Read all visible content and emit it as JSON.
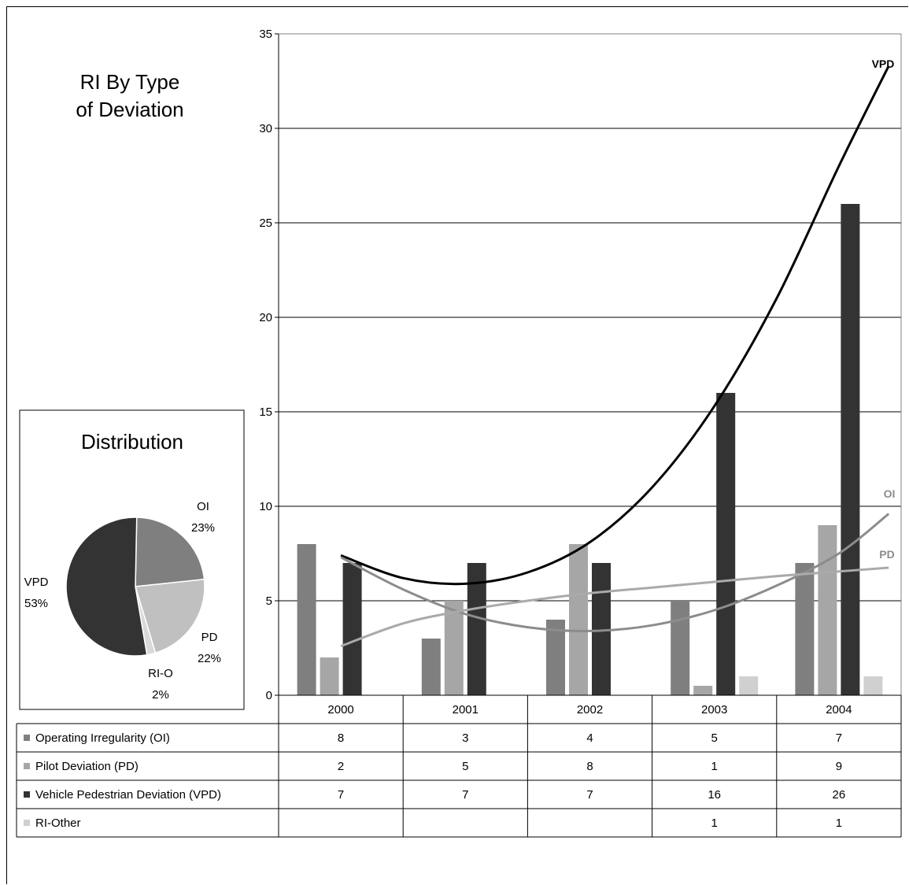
{
  "chart_data": [
    {
      "type": "bar",
      "title": "RI By Type of Deviation",
      "title_lines": [
        "RI By Type",
        "of Deviation"
      ],
      "categories": [
        "2000",
        "2001",
        "2002",
        "2003",
        "2004"
      ],
      "ylim": [
        0,
        35
      ],
      "yticks": [
        "0",
        "5",
        "10",
        "15",
        "20",
        "25",
        "30",
        "35"
      ],
      "grid": true,
      "series": [
        {
          "name": "Operating Irregularity (OI)",
          "values": [
            8,
            3,
            4,
            5,
            7
          ],
          "color": "#7f7f7f"
        },
        {
          "name": "Pilot Deviation (PD)",
          "values": [
            2,
            5,
            8,
            0.5,
            9
          ],
          "color": "#a6a6a6"
        },
        {
          "name": "Vehicle Pedestrian Deviation (VPD)",
          "values": [
            7,
            7,
            7,
            16,
            26
          ],
          "color": "#333333"
        },
        {
          "name": "RI-Other",
          "values": [
            0,
            0,
            0,
            1,
            1
          ],
          "color": "#d0d0d0"
        }
      ],
      "data_table": {
        "rows": [
          {
            "label": "Operating Irregularity (OI)",
            "values": [
              "8",
              "3",
              "4",
              "5",
              "7"
            ],
            "swatch": "#7f7f7f"
          },
          {
            "label": "Pilot Deviation (PD)",
            "values": [
              "2",
              "5",
              "8",
              "1",
              "9"
            ],
            "swatch": "#a6a6a6"
          },
          {
            "label": "Vehicle Pedestrian Deviation (VPD)",
            "values": [
              "7",
              "7",
              "7",
              "16",
              "26"
            ],
            "swatch": "#333333"
          },
          {
            "label": "RI-Other",
            "values": [
              "",
              "",
              "",
              "1",
              "1"
            ],
            "swatch": "#d0d0d0"
          }
        ]
      },
      "trendlines": [
        {
          "label": "VPD",
          "type": "polynomial",
          "color": "#000000",
          "points": [
            [
              0,
              7.4
            ],
            [
              0.5,
              6.2
            ],
            [
              1,
              5.9
            ],
            [
              1.5,
              6.5
            ],
            [
              2,
              8.1
            ],
            [
              2.5,
              11
            ],
            [
              3,
              15.3
            ],
            [
              3.5,
              21
            ],
            [
              4,
              28
            ],
            [
              4.4,
              33.3
            ]
          ]
        },
        {
          "label": "OI",
          "type": "polynomial",
          "color": "#8c8c8c",
          "points": [
            [
              0,
              7.3
            ],
            [
              0.5,
              5.6
            ],
            [
              1,
              4.3
            ],
            [
              1.5,
              3.6
            ],
            [
              2,
              3.4
            ],
            [
              2.5,
              3.7
            ],
            [
              3,
              4.5
            ],
            [
              3.5,
              5.8
            ],
            [
              4,
              7.5
            ],
            [
              4.4,
              9.6
            ]
          ]
        },
        {
          "label": "PD",
          "type": "logarithmic",
          "color": "#aaaaaa",
          "points": [
            [
              0,
              2.6
            ],
            [
              0.5,
              3.8
            ],
            [
              1,
              4.5
            ],
            [
              1.5,
              5.0
            ],
            [
              2,
              5.4
            ],
            [
              2.5,
              5.7
            ],
            [
              3,
              6.0
            ],
            [
              3.5,
              6.3
            ],
            [
              4,
              6.55
            ],
            [
              4.4,
              6.75
            ]
          ]
        }
      ]
    },
    {
      "type": "pie",
      "title": "Distribution",
      "slices": [
        {
          "name": "OI",
          "label": "OI",
          "pct_label": "23%",
          "value": 23,
          "color": "#7f7f7f"
        },
        {
          "name": "PD",
          "label": "PD",
          "pct_label": "22%",
          "value": 22,
          "color": "#c0c0c0"
        },
        {
          "name": "RI-O",
          "label": "RI-O",
          "pct_label": "2%",
          "value": 2,
          "color": "#d9d9d9"
        },
        {
          "name": "VPD",
          "label": "VPD",
          "pct_label": "53%",
          "value": 53,
          "color": "#333333"
        }
      ]
    }
  ]
}
